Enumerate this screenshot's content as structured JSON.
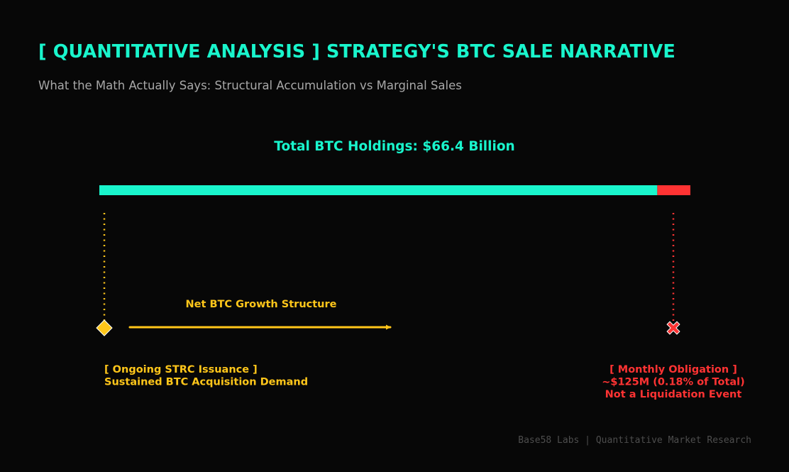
{
  "header": {
    "title": "[ QUANTITATIVE ANALYSIS ] STRATEGY'S BTC SALE NARRATIVE",
    "subtitle": "What the Math Actually Says: Structural Accumulation vs Marginal Sales"
  },
  "colors": {
    "accent": "#19f5cc",
    "warning": "#ffc61a",
    "danger": "#ff3333",
    "background": "#070707"
  },
  "chart_data": {
    "type": "bar",
    "title": "Total BTC Holdings: $66.4 Billion",
    "orientation": "horizontal-stacked",
    "unit": "% of total holdings",
    "segments": [
      {
        "name": "",
        "value": 94.4,
        "color": "#19f5cc"
      },
      {
        "name": "",
        "value": 5.6,
        "color": "#ff3333"
      }
    ],
    "arrow_label": "Net BTC Growth Structure",
    "markers": [
      {
        "id": "strc",
        "shape": "diamond",
        "color": "#ffc61a",
        "align": "left",
        "lines": [
          "[ Ongoing STRC Issuance ]",
          "Sustained BTC Acquisition Demand"
        ]
      },
      {
        "id": "obligation",
        "shape": "x",
        "color": "#ff3333",
        "align": "center",
        "lines": [
          "[ Monthly Obligation ]",
          "~$125M (0.18% of Total)",
          "Not a Liquidation Event"
        ]
      }
    ]
  },
  "footer": {
    "credit": "Base58 Labs | Quantitative Market Research"
  }
}
